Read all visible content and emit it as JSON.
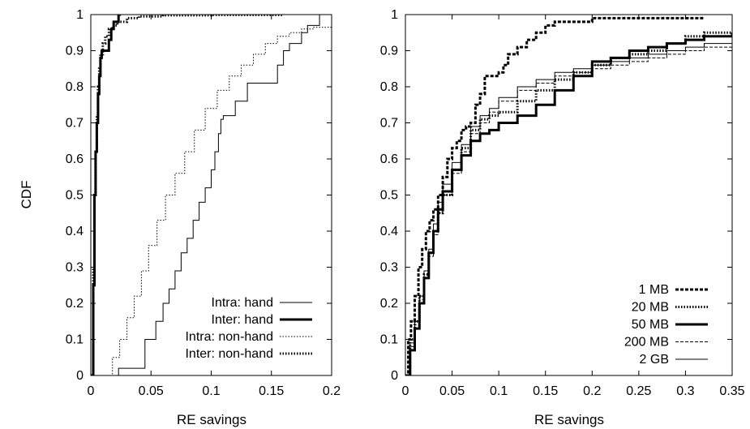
{
  "chart_data": [
    {
      "type": "line",
      "subtype": "cdf-step",
      "ylabel": "CDF",
      "xlabel": "RE savings",
      "xlim": [
        0,
        0.2
      ],
      "ylim": [
        0,
        1
      ],
      "xticks": [
        "0",
        "0.05",
        "0.1",
        "0.15",
        "0.2"
      ],
      "yticks": [
        "0",
        "0.1",
        "0.2",
        "0.3",
        "0.4",
        "0.5",
        "0.6",
        "0.7",
        "0.8",
        "0.9",
        "1"
      ],
      "legend_position": "bottom-right",
      "grid": false,
      "series": [
        {
          "name": "Intra: hand",
          "style": "solid-thin",
          "x": [
            0.023,
            0.023,
            0.045,
            0.045,
            0.054,
            0.06,
            0.065,
            0.07,
            0.075,
            0.08,
            0.085,
            0.09,
            0.095,
            0.1,
            0.103,
            0.106,
            0.108,
            0.11,
            0.115,
            0.12,
            0.125,
            0.13,
            0.14,
            0.15,
            0.155,
            0.16,
            0.165,
            0.175,
            0.18,
            0.19
          ],
          "y": [
            0.0,
            0.02,
            0.05,
            0.1,
            0.15,
            0.2,
            0.24,
            0.29,
            0.34,
            0.38,
            0.43,
            0.48,
            0.52,
            0.57,
            0.62,
            0.67,
            0.71,
            0.72,
            0.72,
            0.76,
            0.76,
            0.81,
            0.81,
            0.81,
            0.86,
            0.9,
            0.92,
            0.95,
            0.97,
            1.0
          ]
        },
        {
          "name": "Inter: hand",
          "style": "solid-thick",
          "x": [
            0.0,
            0.002,
            0.003,
            0.004,
            0.005,
            0.006,
            0.007,
            0.008,
            0.009,
            0.012,
            0.015,
            0.017,
            0.019,
            0.023,
            0.025
          ],
          "y": [
            0.0,
            0.25,
            0.5,
            0.62,
            0.7,
            0.78,
            0.83,
            0.88,
            0.9,
            0.9,
            0.93,
            0.96,
            0.98,
            1.0,
            1.0
          ]
        },
        {
          "name": "Intra: non-hand",
          "style": "dotted-thin",
          "x": [
            0.012,
            0.018,
            0.024,
            0.03,
            0.036,
            0.042,
            0.048,
            0.055,
            0.062,
            0.07,
            0.078,
            0.086,
            0.095,
            0.105,
            0.115,
            0.125,
            0.135,
            0.145,
            0.155,
            0.165,
            0.175,
            0.185,
            0.2
          ],
          "y": [
            0.0,
            0.05,
            0.1,
            0.16,
            0.22,
            0.29,
            0.36,
            0.43,
            0.5,
            0.56,
            0.62,
            0.68,
            0.74,
            0.79,
            0.83,
            0.86,
            0.89,
            0.92,
            0.94,
            0.95,
            0.96,
            0.965,
            0.975
          ]
        },
        {
          "name": "Inter: non-hand",
          "style": "dotted-thick",
          "x": [
            0.0,
            0.002,
            0.003,
            0.004,
            0.005,
            0.006,
            0.007,
            0.008,
            0.01,
            0.012,
            0.015,
            0.018,
            0.022,
            0.03,
            0.04,
            0.06,
            0.1,
            0.16
          ],
          "y": [
            0.0,
            0.3,
            0.5,
            0.62,
            0.72,
            0.8,
            0.85,
            0.89,
            0.92,
            0.94,
            0.96,
            0.97,
            0.98,
            0.99,
            0.995,
            0.998,
            0.999,
            1.0
          ]
        }
      ]
    },
    {
      "type": "line",
      "subtype": "cdf-step",
      "ylabel": "",
      "xlabel": "RE savings",
      "xlim": [
        0,
        0.35
      ],
      "ylim": [
        0,
        1
      ],
      "xticks": [
        "0",
        "0.05",
        "0.1",
        "0.15",
        "0.2",
        "0.25",
        "0.3",
        "0.35"
      ],
      "yticks": [
        "0",
        "0.1",
        "0.2",
        "0.3",
        "0.4",
        "0.5",
        "0.6",
        "0.7",
        "0.8",
        "0.9",
        "1"
      ],
      "legend_position": "bottom-right",
      "grid": false,
      "series": [
        {
          "name": "1 MB",
          "style": "dashed-thick",
          "x": [
            0.0,
            0.003,
            0.006,
            0.01,
            0.014,
            0.018,
            0.022,
            0.026,
            0.03,
            0.035,
            0.04,
            0.045,
            0.05,
            0.055,
            0.06,
            0.065,
            0.07,
            0.075,
            0.08,
            0.085,
            0.09,
            0.1,
            0.105,
            0.11,
            0.12,
            0.13,
            0.14,
            0.15,
            0.16,
            0.17,
            0.2,
            0.25,
            0.3,
            0.32
          ],
          "y": [
            0.0,
            0.1,
            0.15,
            0.22,
            0.3,
            0.35,
            0.4,
            0.43,
            0.46,
            0.5,
            0.55,
            0.6,
            0.63,
            0.65,
            0.68,
            0.69,
            0.7,
            0.75,
            0.78,
            0.83,
            0.83,
            0.84,
            0.86,
            0.89,
            0.91,
            0.93,
            0.95,
            0.97,
            0.98,
            0.98,
            0.99,
            0.99,
            0.99,
            0.99
          ]
        },
        {
          "name": "20 MB",
          "style": "dotted-thick",
          "x": [
            0.0,
            0.005,
            0.01,
            0.015,
            0.02,
            0.025,
            0.03,
            0.035,
            0.04,
            0.05,
            0.06,
            0.07,
            0.08,
            0.09,
            0.1,
            0.12,
            0.14,
            0.16,
            0.18,
            0.2,
            0.22,
            0.24,
            0.26,
            0.28,
            0.3,
            0.32,
            0.35
          ],
          "y": [
            0.0,
            0.1,
            0.15,
            0.22,
            0.28,
            0.34,
            0.4,
            0.45,
            0.5,
            0.57,
            0.63,
            0.68,
            0.71,
            0.72,
            0.73,
            0.76,
            0.79,
            0.82,
            0.84,
            0.86,
            0.88,
            0.89,
            0.9,
            0.92,
            0.94,
            0.95,
            0.95
          ]
        },
        {
          "name": "50 MB",
          "style": "solid-thick",
          "x": [
            0.0,
            0.005,
            0.01,
            0.015,
            0.02,
            0.025,
            0.03,
            0.035,
            0.04,
            0.05,
            0.06,
            0.07,
            0.08,
            0.09,
            0.1,
            0.12,
            0.14,
            0.16,
            0.18,
            0.2,
            0.22,
            0.24,
            0.26,
            0.28,
            0.3,
            0.32,
            0.35
          ],
          "y": [
            0.0,
            0.07,
            0.13,
            0.2,
            0.27,
            0.34,
            0.4,
            0.46,
            0.51,
            0.57,
            0.61,
            0.65,
            0.67,
            0.68,
            0.7,
            0.72,
            0.75,
            0.79,
            0.83,
            0.87,
            0.88,
            0.9,
            0.91,
            0.92,
            0.93,
            0.94,
            0.95
          ]
        },
        {
          "name": "200 MB",
          "style": "dashed-thin",
          "x": [
            0.0,
            0.005,
            0.01,
            0.015,
            0.02,
            0.025,
            0.03,
            0.035,
            0.04,
            0.05,
            0.06,
            0.07,
            0.08,
            0.09,
            0.1,
            0.12,
            0.14,
            0.16,
            0.18,
            0.2,
            0.22,
            0.24,
            0.26,
            0.28,
            0.3,
            0.32,
            0.35
          ],
          "y": [
            0.0,
            0.08,
            0.14,
            0.21,
            0.27,
            0.33,
            0.39,
            0.45,
            0.5,
            0.56,
            0.62,
            0.67,
            0.7,
            0.73,
            0.76,
            0.79,
            0.81,
            0.83,
            0.84,
            0.85,
            0.86,
            0.87,
            0.88,
            0.89,
            0.9,
            0.91,
            0.92
          ]
        },
        {
          "name": "2 GB",
          "style": "solid-thin",
          "x": [
            0.0,
            0.005,
            0.01,
            0.015,
            0.02,
            0.025,
            0.03,
            0.035,
            0.04,
            0.05,
            0.06,
            0.07,
            0.08,
            0.09,
            0.1,
            0.12,
            0.14,
            0.16,
            0.18,
            0.2,
            0.22,
            0.24,
            0.26,
            0.28,
            0.3,
            0.32,
            0.35
          ],
          "y": [
            0.0,
            0.09,
            0.15,
            0.22,
            0.29,
            0.35,
            0.42,
            0.48,
            0.53,
            0.59,
            0.64,
            0.69,
            0.72,
            0.74,
            0.77,
            0.8,
            0.82,
            0.84,
            0.85,
            0.86,
            0.87,
            0.88,
            0.89,
            0.9,
            0.91,
            0.92,
            0.93
          ]
        }
      ]
    }
  ]
}
